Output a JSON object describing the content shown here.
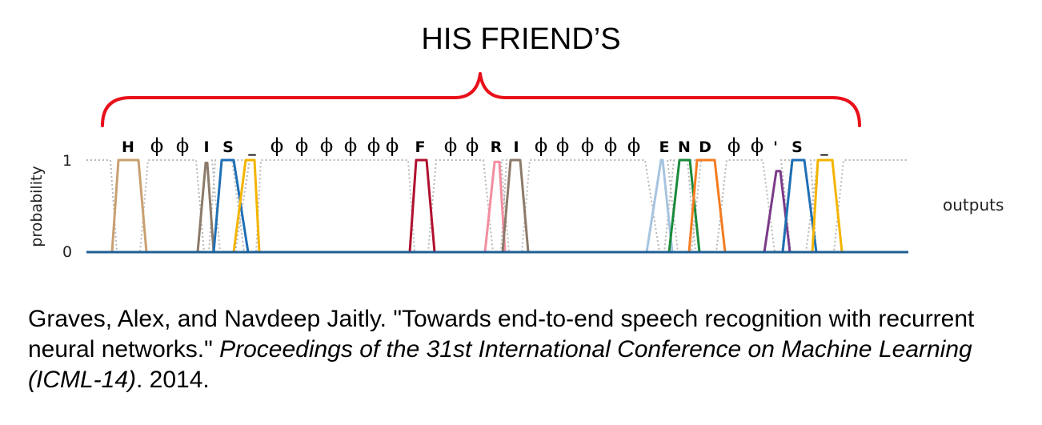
{
  "slide": {
    "title": "HIS FRIEND’S"
  },
  "chart_data": {
    "type": "line",
    "ylabel": "probability",
    "row_label": "outputs",
    "ylim": [
      0,
      1
    ],
    "yticks": [
      "0",
      "1"
    ],
    "output_labels": [
      "H",
      "ϕ",
      "ϕ",
      "I",
      "S",
      "_",
      "ϕ",
      "ϕ",
      "ϕ",
      "ϕ",
      "ϕ",
      "ϕ",
      "F",
      "ϕ",
      "ϕ",
      "R",
      "I",
      "ϕ",
      "ϕ",
      "ϕ",
      "ϕ",
      "ϕ",
      "E",
      "N",
      "D",
      "ϕ",
      "ϕ",
      "'",
      "S",
      "_"
    ],
    "spikes": [
      {
        "label": "H",
        "color": "#c8a070",
        "x0": 140,
        "x1": 148,
        "x2": 173,
        "x3": 183,
        "peak": 1.0
      },
      {
        "label": "I",
        "color": "#8c7a6a",
        "x0": 247,
        "x1": 257,
        "x2": 259,
        "x3": 267,
        "peak": 0.97
      },
      {
        "label": "S",
        "color": "#1f6fb4",
        "x0": 267,
        "x1": 277,
        "x2": 292,
        "x3": 310,
        "peak": 1.0
      },
      {
        "label": "_",
        "color": "#f4b400",
        "x0": 292,
        "x1": 307,
        "x2": 318,
        "x3": 324,
        "peak": 1.0
      },
      {
        "label": "F",
        "color": "#b01030",
        "x0": 512,
        "x1": 520,
        "x2": 533,
        "x3": 543,
        "peak": 1.0
      },
      {
        "label": "R",
        "color": "#f28ea0",
        "x0": 606,
        "x1": 618,
        "x2": 624,
        "x3": 631,
        "peak": 0.98
      },
      {
        "label": "I",
        "color": "#8c7a6a",
        "x0": 628,
        "x1": 638,
        "x2": 650,
        "x3": 660,
        "peak": 1.0
      },
      {
        "label": "E",
        "color": "#a6c4e0",
        "x0": 808,
        "x1": 826,
        "x2": 828,
        "x3": 840,
        "peak": 1.0
      },
      {
        "label": "N",
        "color": "#1a8a3a",
        "x0": 836,
        "x1": 849,
        "x2": 862,
        "x3": 874,
        "peak": 1.0
      },
      {
        "label": "D",
        "color": "#f47c20",
        "x0": 861,
        "x1": 871,
        "x2": 893,
        "x3": 906,
        "peak": 1.0
      },
      {
        "label": "'",
        "color": "#7b3a8a",
        "x0": 955,
        "x1": 970,
        "x2": 975,
        "x3": 987,
        "peak": 0.88
      },
      {
        "label": "S",
        "color": "#1f6fb4",
        "x0": 978,
        "x1": 990,
        "x2": 1005,
        "x3": 1020,
        "peak": 1.0
      },
      {
        "label": "_",
        "color": "#f4b400",
        "x0": 1015,
        "x1": 1022,
        "x2": 1040,
        "x3": 1052,
        "peak": 1.0
      }
    ]
  },
  "citation": {
    "part1": "Graves, Alex, and Navdeep Jaitly. \"Towards end-to-end speech recognition with recurrent neural networks.\" ",
    "venue": "Proceedings of the 31st International Conference on Machine Learning (ICML-14)",
    "part2": ". 2014."
  },
  "colors": {
    "brace": "#e8101a",
    "baseline": "#1f5f95",
    "blank": "#b8b8b8"
  }
}
